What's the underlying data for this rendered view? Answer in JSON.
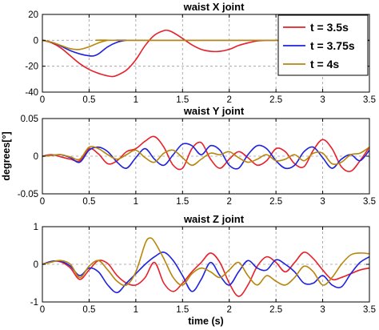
{
  "chart_data": [
    {
      "type": "line",
      "title": "waist X joint",
      "ylabel": "",
      "xlabel": "",
      "xlim": [
        0,
        3.5
      ],
      "ylim": [
        -40,
        20
      ],
      "xticks": [
        "0",
        "0.5",
        "1",
        "1.5",
        "2",
        "2.5",
        "3",
        "3.5"
      ],
      "yticks": [
        "20",
        "0",
        "-20",
        "-40"
      ],
      "grid": true,
      "legend": "top-right",
      "series": [
        {
          "name": "t = 3.5s",
          "color": "#e8202a",
          "x": [
            0,
            0.1,
            0.2,
            0.3,
            0.4,
            0.5,
            0.6,
            0.7,
            0.75,
            0.8,
            0.9,
            1.0,
            1.1,
            1.2,
            1.3,
            1.35,
            1.4,
            1.5,
            1.6,
            1.7,
            1.8,
            1.9,
            2.0,
            2.1,
            2.2,
            2.3,
            2.4,
            2.5,
            3.5
          ],
          "y": [
            0,
            -2,
            -6,
            -12,
            -18,
            -22.5,
            -25.5,
            -27.5,
            -28,
            -27,
            -23,
            -15,
            -4,
            4,
            7.5,
            7.5,
            6,
            1.5,
            -3.5,
            -7,
            -8.5,
            -8.5,
            -7,
            -4,
            -2,
            -0.5,
            0,
            0,
            0
          ]
        },
        {
          "name": "t = 3.75s",
          "color": "#1e22e0",
          "x": [
            0,
            0.1,
            0.2,
            0.3,
            0.4,
            0.5,
            0.55,
            0.6,
            0.7,
            0.8,
            0.9,
            1.0,
            3.5
          ],
          "y": [
            0,
            -1.5,
            -4.5,
            -8,
            -10.5,
            -12,
            -12,
            -10.5,
            -5,
            -1.5,
            0,
            0,
            0
          ]
        },
        {
          "name": "t = 4s",
          "color": "#b8860b",
          "x": [
            0,
            0.1,
            0.2,
            0.3,
            0.4,
            0.5,
            0.6,
            0.7,
            0.8,
            3.5
          ],
          "y": [
            0,
            -1.5,
            -4,
            -6.5,
            -7,
            -5,
            -2,
            0,
            0,
            0
          ]
        }
      ]
    },
    {
      "type": "line",
      "title": "waist Y joint",
      "ylabel": "degrees[°]",
      "xlabel": "",
      "xlim": [
        0,
        3.5
      ],
      "ylim": [
        -0.05,
        0.05
      ],
      "xticks": [
        "0",
        "0.5",
        "1",
        "1.5",
        "2",
        "2.5",
        "3",
        "3.5"
      ],
      "yticks": [
        "0.05",
        "0",
        "-0.05"
      ],
      "grid": true,
      "series": [
        {
          "name": "t = 3.5s",
          "color": "#e8202a",
          "x": [
            0,
            0.1,
            0.2,
            0.3,
            0.4,
            0.5,
            0.6,
            0.7,
            0.8,
            0.9,
            1.0,
            1.1,
            1.2,
            1.3,
            1.4,
            1.5,
            1.6,
            1.7,
            1.8,
            1.9,
            2.0,
            2.1,
            2.2,
            2.3,
            2.4,
            2.5,
            2.6,
            2.7,
            2.8,
            2.9,
            3.0,
            3.1,
            3.2,
            3.3,
            3.4,
            3.5
          ],
          "y": [
            0,
            0.002,
            -0.001,
            -0.004,
            -0.006,
            0.01,
            0.003,
            -0.01,
            -0.006,
            0.006,
            0.01,
            0.02,
            0.026,
            0.012,
            -0.012,
            -0.016,
            0.01,
            0.018,
            -0.004,
            -0.016,
            -0.004,
            0.006,
            -0.002,
            -0.012,
            -0.006,
            0.01,
            0.006,
            -0.01,
            -0.014,
            0.008,
            0.022,
            0.01,
            -0.014,
            -0.02,
            -0.006,
            0.012
          ]
        },
        {
          "name": "t = 3.75s",
          "color": "#1e22e0",
          "x": [
            0,
            0.1,
            0.2,
            0.3,
            0.4,
            0.5,
            0.6,
            0.7,
            0.8,
            0.9,
            1.0,
            1.1,
            1.2,
            1.3,
            1.4,
            1.5,
            1.6,
            1.7,
            1.8,
            1.9,
            2.0,
            2.1,
            2.2,
            2.3,
            2.4,
            2.5,
            2.6,
            2.7,
            2.8,
            2.9,
            3.0,
            3.1,
            3.2,
            3.3,
            3.4,
            3.5
          ],
          "y": [
            0,
            0.001,
            0.002,
            -0.002,
            -0.008,
            0.008,
            0.012,
            0.006,
            -0.008,
            -0.016,
            -0.002,
            0.01,
            -0.004,
            -0.012,
            0.002,
            0.016,
            0.014,
            0.002,
            0.014,
            0.008,
            -0.012,
            -0.016,
            0.002,
            0.014,
            0.01,
            -0.006,
            -0.016,
            -0.012,
            0.006,
            0.012,
            -0.002,
            -0.016,
            -0.004,
            0.002,
            -0.006,
            0.008
          ]
        },
        {
          "name": "t = 4s",
          "color": "#b8860b",
          "x": [
            0,
            0.1,
            0.2,
            0.3,
            0.4,
            0.5,
            0.6,
            0.7,
            0.8,
            0.9,
            1.0,
            1.1,
            1.2,
            1.3,
            1.4,
            1.5,
            1.6,
            1.7,
            1.8,
            1.9,
            2.0,
            2.1,
            2.2,
            2.3,
            2.4,
            2.5,
            2.6,
            2.7,
            2.8,
            2.9,
            3.0,
            3.1,
            3.2,
            3.3,
            3.4,
            3.5
          ],
          "y": [
            0,
            0.001,
            0.002,
            -0.001,
            -0.004,
            0.012,
            0.01,
            0.002,
            -0.004,
            0.002,
            0.008,
            -0.002,
            -0.008,
            0.004,
            0.008,
            -0.002,
            -0.012,
            -0.004,
            0.004,
            0.002,
            0.006,
            -0.002,
            -0.008,
            -0.004,
            0.002,
            -0.006,
            -0.004,
            0.002,
            -0.006,
            0.004,
            0.004,
            -0.01,
            -0.008,
            0.002,
            0.004,
            0.012
          ]
        }
      ]
    },
    {
      "type": "line",
      "title": "waist Z joint",
      "ylabel": "",
      "xlabel": "time (s)",
      "xlim": [
        0,
        3.5
      ],
      "ylim": [
        -1,
        1
      ],
      "xticks": [
        "0",
        "0.5",
        "1",
        "1.5",
        "2",
        "2.5",
        "3",
        "3.5"
      ],
      "yticks": [
        "1",
        "0",
        "-1"
      ],
      "grid": true,
      "series": [
        {
          "name": "t = 3.5s",
          "color": "#e8202a",
          "x": [
            0,
            0.1,
            0.2,
            0.3,
            0.4,
            0.5,
            0.6,
            0.7,
            0.8,
            0.9,
            1.0,
            1.1,
            1.2,
            1.3,
            1.4,
            1.5,
            1.6,
            1.7,
            1.8,
            1.9,
            2.0,
            2.1,
            2.2,
            2.3,
            2.4,
            2.5,
            2.6,
            2.7,
            2.8,
            2.9,
            3.0,
            3.1,
            3.2,
            3.3,
            3.4,
            3.5
          ],
          "y": [
            0,
            0.08,
            0.06,
            -0.1,
            -0.4,
            -0.15,
            0.1,
            0.02,
            -0.3,
            -0.5,
            -0.55,
            -0.35,
            0.05,
            -0.5,
            -0.72,
            -0.5,
            -0.2,
            0.05,
            0.3,
            0.05,
            -0.5,
            -0.85,
            -0.55,
            -0.05,
            0.2,
            0.05,
            -0.2,
            0.05,
            0.32,
            0.15,
            -0.15,
            -0.4,
            -0.35,
            -0.25,
            -0.15,
            -0.1
          ]
        },
        {
          "name": "t = 3.75s",
          "color": "#1e22e0",
          "x": [
            0,
            0.1,
            0.2,
            0.3,
            0.4,
            0.5,
            0.6,
            0.7,
            0.8,
            0.9,
            1.0,
            1.1,
            1.2,
            1.3,
            1.4,
            1.5,
            1.6,
            1.7,
            1.8,
            1.9,
            2.0,
            2.1,
            2.2,
            2.3,
            2.4,
            2.5,
            2.6,
            2.7,
            2.8,
            2.9,
            3.0,
            3.1,
            3.2,
            3.3,
            3.4,
            3.5
          ],
          "y": [
            0,
            0.08,
            0.08,
            -0.05,
            -0.3,
            -0.1,
            -0.2,
            -0.55,
            -0.75,
            -0.5,
            -0.25,
            0.0,
            0.2,
            0.32,
            0.1,
            -0.3,
            -0.72,
            -0.4,
            0.05,
            -0.3,
            -0.55,
            -0.2,
            0.1,
            -0.1,
            -0.15,
            0.12,
            0.0,
            -0.2,
            -0.5,
            -0.5,
            -0.3,
            -0.55,
            -0.6,
            -0.25,
            0.05,
            0.2
          ]
        },
        {
          "name": "t = 4s",
          "color": "#b8860b",
          "x": [
            0,
            0.1,
            0.2,
            0.3,
            0.4,
            0.5,
            0.6,
            0.7,
            0.8,
            0.9,
            1.0,
            1.1,
            1.15,
            1.2,
            1.3,
            1.4,
            1.5,
            1.6,
            1.7,
            1.8,
            1.9,
            2.0,
            2.1,
            2.2,
            2.3,
            2.4,
            2.5,
            2.6,
            2.7,
            2.8,
            2.9,
            3.0,
            3.1,
            3.2,
            3.3,
            3.4,
            3.5
          ],
          "y": [
            0,
            0.06,
            0.1,
            0.0,
            -0.35,
            -0.05,
            0.1,
            -0.15,
            -0.45,
            -0.55,
            -0.2,
            0.55,
            0.7,
            0.6,
            0.15,
            -0.35,
            -0.55,
            -0.25,
            -0.1,
            -0.2,
            -0.35,
            -0.15,
            0.05,
            -0.3,
            -0.55,
            -0.3,
            -0.45,
            -0.55,
            -0.35,
            -0.05,
            -0.2,
            -0.55,
            -0.35,
            0.0,
            0.25,
            0.3,
            0.28
          ]
        }
      ]
    }
  ]
}
